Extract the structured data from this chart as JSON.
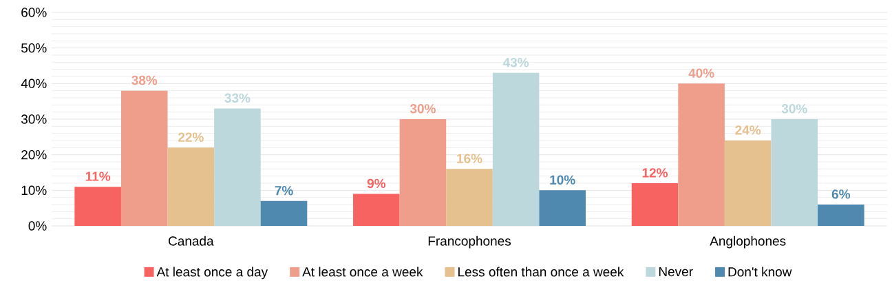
{
  "chart_data": {
    "type": "bar",
    "categories": [
      "Canada",
      "Francophones",
      "Anglophones"
    ],
    "series": [
      {
        "name": "At least once a day",
        "color": "#f76361",
        "values": [
          11,
          9,
          12
        ],
        "value_labels": [
          "11%",
          "9%",
          "12%"
        ]
      },
      {
        "name": "At least once a week",
        "color": "#f09e8c",
        "values": [
          38,
          30,
          40
        ],
        "value_labels": [
          "38%",
          "30%",
          "40%"
        ]
      },
      {
        "name": "Less often than once a week",
        "color": "#e4c18e",
        "values": [
          22,
          16,
          24
        ],
        "value_labels": [
          "22%",
          "16%",
          "24%"
        ]
      },
      {
        "name": "Never",
        "color": "#bdd8dc",
        "values": [
          33,
          43,
          30
        ],
        "value_labels": [
          "33%",
          "43%",
          "30%"
        ]
      },
      {
        "name": "Don't know",
        "color": "#4f89b0",
        "values": [
          7,
          10,
          6
        ],
        "value_labels": [
          "7%",
          "10%",
          "6%"
        ]
      }
    ],
    "ylim": [
      0,
      60
    ],
    "yticks": [
      {
        "value": 0,
        "label": "0%"
      },
      {
        "value": 10,
        "label": "10%"
      },
      {
        "value": 20,
        "label": "20%"
      },
      {
        "value": 30,
        "label": "30%"
      },
      {
        "value": 40,
        "label": "40%"
      },
      {
        "value": 50,
        "label": "50%"
      },
      {
        "value": 60,
        "label": "60%"
      }
    ],
    "grid": "y",
    "legend": "bottom"
  }
}
